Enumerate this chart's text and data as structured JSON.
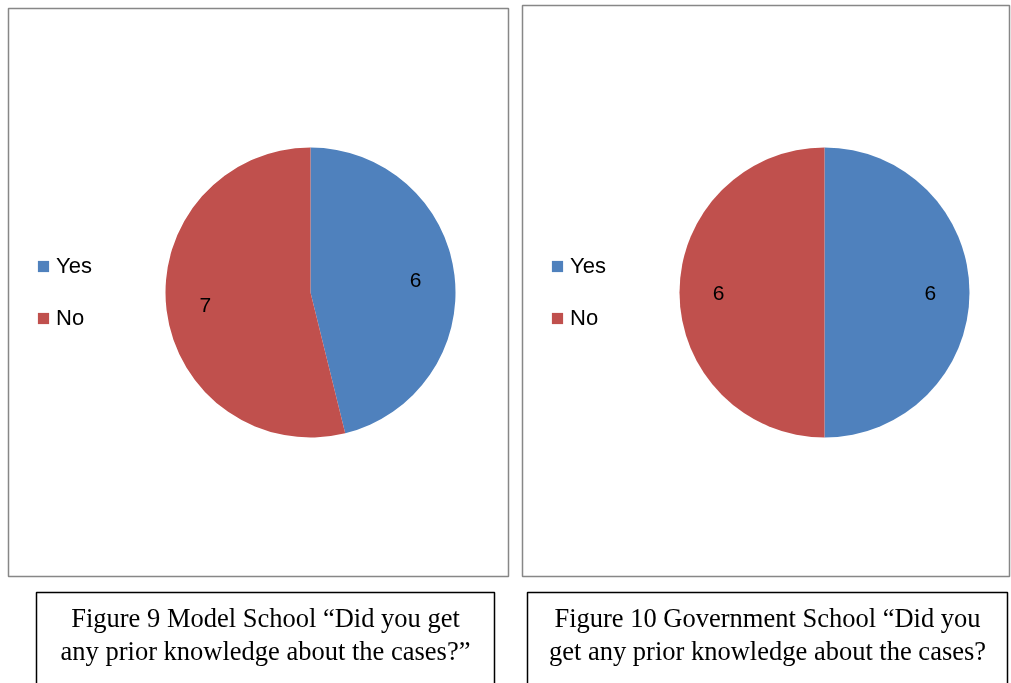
{
  "chart_data": [
    {
      "type": "pie",
      "categories": [
        "Yes",
        "No"
      ],
      "values": [
        6,
        7
      ],
      "colors": [
        "#4f81bd",
        "#c0504d"
      ],
      "data_labels": true,
      "legend": "left",
      "annotations": [
        "Figure 9 Model School “Did you get any prior knowledge about the cases?”"
      ]
    },
    {
      "type": "pie",
      "categories": [
        "Yes",
        "No"
      ],
      "values": [
        6,
        6
      ],
      "colors": [
        "#4f81bd",
        "#c0504d"
      ],
      "data_labels": true,
      "legend": "left",
      "annotations": [
        "Figure 10 Government School “Did you get any prior knowledge about the cases?"
      ]
    }
  ]
}
